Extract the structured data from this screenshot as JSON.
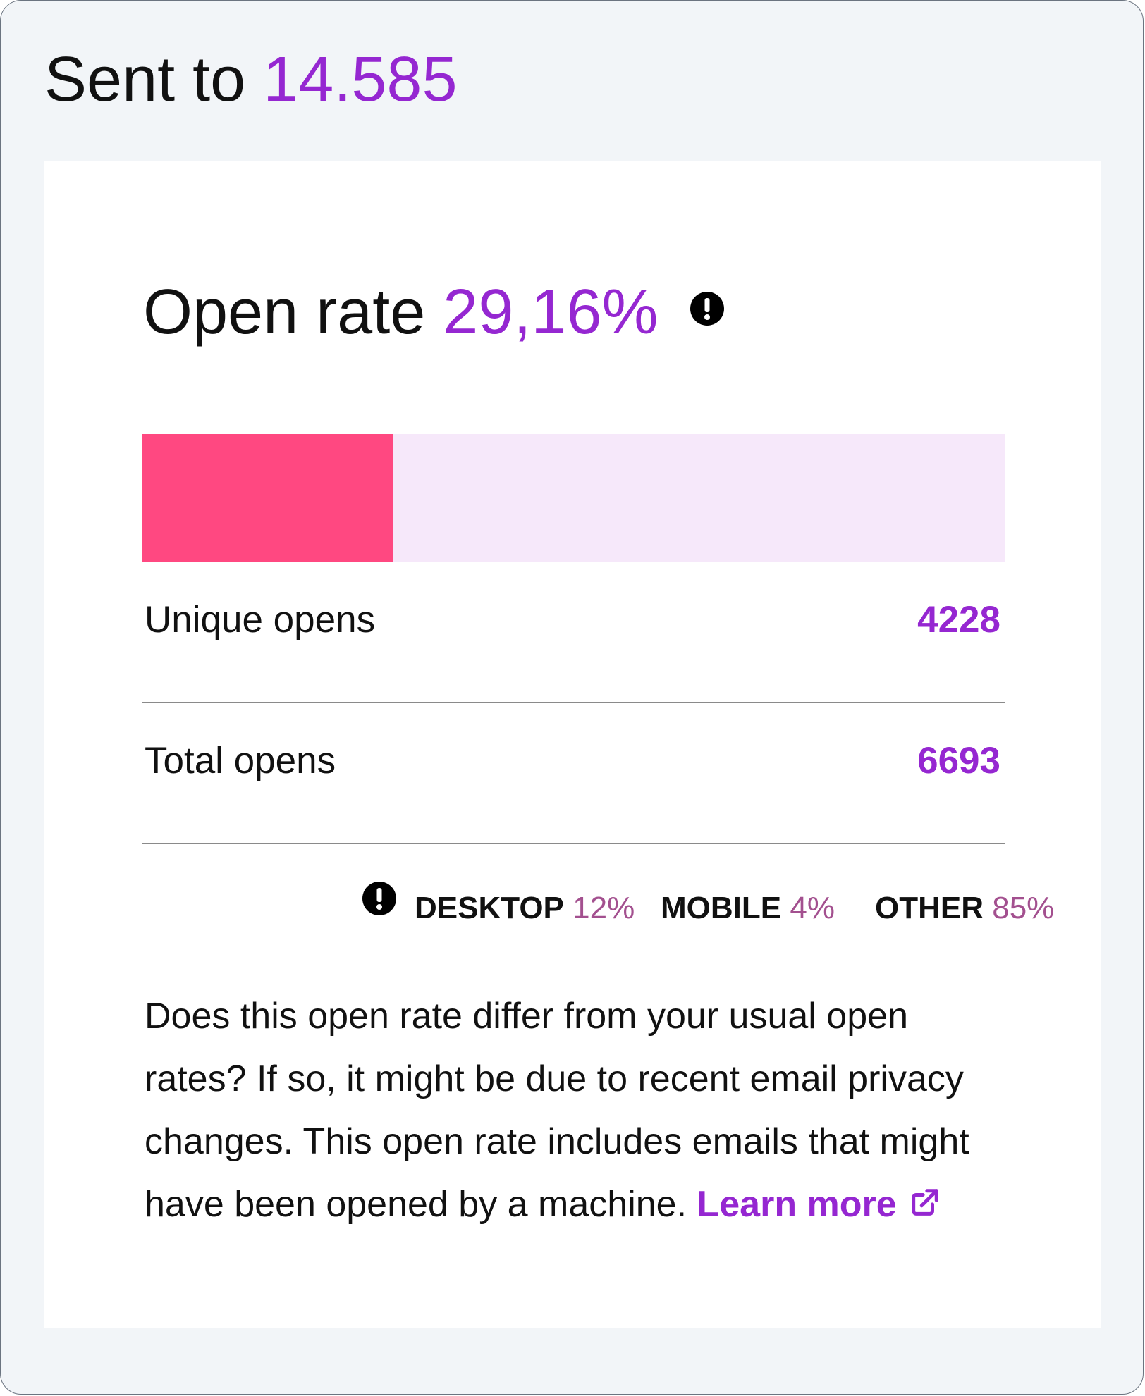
{
  "header": {
    "sent_label": "Sent to",
    "sent_count": "14.585"
  },
  "open_rate": {
    "label": "Open rate",
    "value": "29,16%",
    "info_icon": "exclamation-circle-icon",
    "bar_fill_fraction": 0.2916,
    "bar_fill_color": "#ff4881",
    "bar_track_color": "#f6e8fa"
  },
  "stats": [
    {
      "label": "Unique opens",
      "value": "4228"
    },
    {
      "label": "Total opens",
      "value": "6693"
    }
  ],
  "devices": {
    "info_icon": "exclamation-circle-icon",
    "items": [
      {
        "name": "DESKTOP",
        "pct": "12%"
      },
      {
        "name": "MOBILE",
        "pct": "4%"
      },
      {
        "name": "OTHER",
        "pct": "85%"
      }
    ]
  },
  "note": {
    "text": "Does this open rate differ from your usual open rates? If so, it might be due to recent email privacy changes. This open rate includes emails that might have been opened by a machine.",
    "link_label": "Learn more",
    "link_icon": "external-link-icon"
  },
  "colors": {
    "accent": "#9527d1",
    "percent_muted": "#a3508f"
  }
}
